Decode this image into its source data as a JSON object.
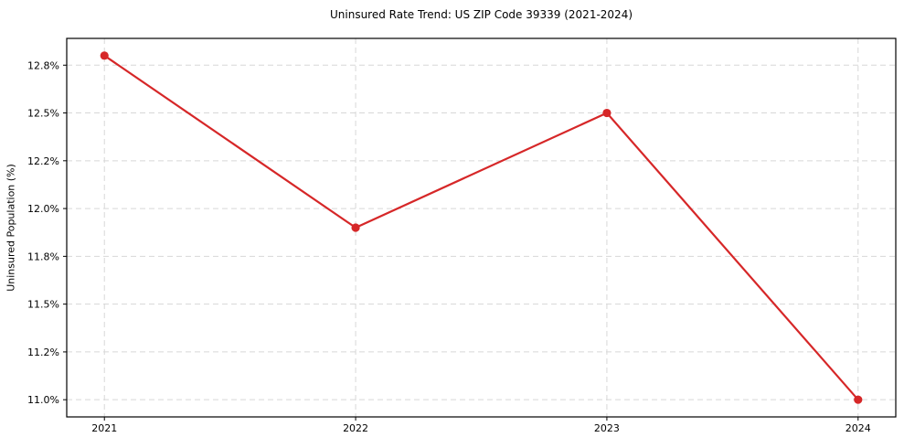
{
  "chart_data": {
    "type": "line",
    "title": "Uninsured Rate Trend: US ZIP Code 39339 (2021-2024)",
    "xlabel": "",
    "ylabel": "Uninsured Population (%)",
    "x": [
      2021,
      2022,
      2023,
      2024
    ],
    "series": [
      {
        "name": "Uninsured rate trend",
        "values": [
          12.8,
          11.9,
          12.5,
          11.0
        ]
      }
    ],
    "xticks": {
      "values": [
        2021,
        2022,
        2023,
        2024
      ],
      "labels": [
        "2021",
        "2022",
        "2023",
        "2024"
      ]
    },
    "yticks": {
      "values": [
        11.0,
        11.25,
        11.5,
        11.75,
        12.0,
        12.25,
        12.5,
        12.75
      ],
      "labels": [
        "11.0%",
        "11.2%",
        "11.5%",
        "11.8%",
        "12.0%",
        "12.2%",
        "12.5%",
        "12.8%"
      ]
    },
    "xlim": [
      2020.85,
      2024.15
    ],
    "ylim": [
      10.91,
      12.89
    ],
    "grid": true,
    "grid_style": "dashed",
    "legend": "none",
    "marker": "circle",
    "colors": {
      "line": "#d62728",
      "marker": "#d62728",
      "grid": "#d7d7d7",
      "spine": "#000000",
      "tick_text": "#000000",
      "background": "#ffffff"
    }
  }
}
